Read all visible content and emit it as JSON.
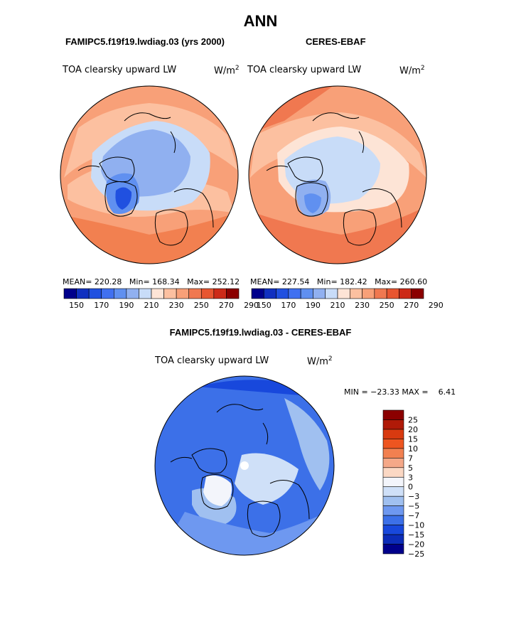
{
  "page_title": "ANN",
  "colors": {
    "cb12": [
      "#00008b",
      "#1030c0",
      "#2050e0",
      "#4070f0",
      "#6090f0",
      "#90b0f0",
      "#c8dcf8",
      "#fde4d6",
      "#fcc0a0",
      "#f8a078",
      "#f07850",
      "#e85530",
      "#cc2a18",
      "#8b0000"
    ],
    "diff": [
      "#8b0000",
      "#b01a08",
      "#d83a10",
      "#ee5520",
      "#f28050",
      "#f5a888",
      "#fbd8c4",
      "#f3f5fb",
      "#cfe0f8",
      "#a0c0f0",
      "#6e98f0",
      "#3c70e8",
      "#1848dc",
      "#0c2cb8",
      "#00008b"
    ],
    "land_outline": "#000000"
  },
  "panels": [
    {
      "header": "FAMIPC5.f19f19.lwdiag.03 (yrs 2000)",
      "variable": "TOA clearsky upward LW",
      "units": "W/m",
      "units_exp": "2",
      "stats": {
        "mean_label": "MEAN=",
        "mean": "220.28",
        "min_label": "Min=",
        "min": "168.34",
        "max_label": "Max=",
        "max": "252.12"
      }
    },
    {
      "header": "CERES-EBAF",
      "variable": "TOA clearsky upward LW",
      "units": "W/m",
      "units_exp": "2",
      "stats": {
        "mean_label": "MEAN=",
        "mean": "227.54",
        "min_label": "Min=",
        "min": "182.42",
        "max_label": "Max=",
        "max": "260.60"
      }
    }
  ],
  "diff_panel": {
    "header": "FAMIPC5.f19f19.lwdiag.03 - CERES-EBAF",
    "variable": "TOA clearsky upward LW",
    "units": "W/m",
    "units_exp": "2",
    "minmax": "MIN = −23.33 MAX =    6.41"
  },
  "chart_data": [
    {
      "type": "heatmap",
      "title": "FAMIPC5.f19f19.lwdiag.03 (yrs 2000)",
      "subtitle": "TOA clearsky upward LW (W/m2)",
      "projection": "north polar stereographic",
      "mean": 220.28,
      "min": 168.34,
      "max": 252.12,
      "colorbar_ticks": [
        "150",
        "170",
        "190",
        "210",
        "230",
        "250",
        "270",
        "290"
      ],
      "colorbar_levels": [
        150,
        160,
        170,
        180,
        190,
        200,
        210,
        220,
        230,
        240,
        250,
        260,
        270,
        280,
        290
      ]
    },
    {
      "type": "heatmap",
      "title": "CERES-EBAF",
      "subtitle": "TOA clearsky upward LW (W/m2)",
      "projection": "north polar stereographic",
      "mean": 227.54,
      "min": 182.42,
      "max": 260.6,
      "colorbar_ticks": [
        "150",
        "170",
        "190",
        "210",
        "230",
        "250",
        "270",
        "290"
      ],
      "colorbar_levels": [
        150,
        160,
        170,
        180,
        190,
        200,
        210,
        220,
        230,
        240,
        250,
        260,
        270,
        280,
        290
      ]
    },
    {
      "type": "heatmap",
      "title": "FAMIPC5.f19f19.lwdiag.03 - CERES-EBAF",
      "subtitle": "TOA clearsky upward LW (W/m2)",
      "projection": "north polar stereographic",
      "min": -23.33,
      "max": 6.41,
      "colorbar_ticks": [
        "25",
        "20",
        "15",
        "10",
        "7",
        "5",
        "3",
        "0",
        "−3",
        "−5",
        "−7",
        "−10",
        "−15",
        "−20",
        "−25"
      ]
    }
  ]
}
